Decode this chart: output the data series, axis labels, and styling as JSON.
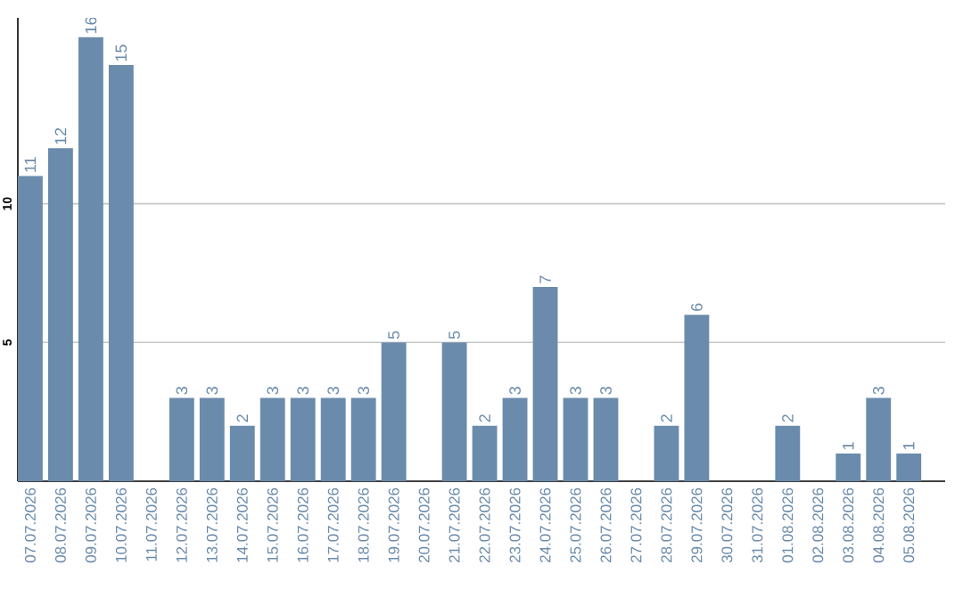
{
  "chart_data": {
    "type": "bar",
    "categories": [
      "07.07.2026",
      "08.07.2026",
      "09.07.2026",
      "10.07.2026",
      "11.07.2026",
      "12.07.2026",
      "13.07.2026",
      "14.07.2026",
      "15.07.2026",
      "16.07.2026",
      "17.07.2026",
      "18.07.2026",
      "19.07.2026",
      "20.07.2026",
      "21.07.2026",
      "22.07.2026",
      "23.07.2026",
      "24.07.2026",
      "25.07.2026",
      "26.07.2026",
      "27.07.2026",
      "28.07.2026",
      "29.07.2026",
      "30.07.2026",
      "31.07.2026",
      "01.08.2026",
      "02.08.2026",
      "03.08.2026",
      "04.08.2026",
      "05.08.2026"
    ],
    "values": [
      11,
      12,
      16,
      15,
      null,
      3,
      3,
      2,
      3,
      3,
      3,
      3,
      5,
      null,
      5,
      2,
      3,
      7,
      3,
      3,
      null,
      2,
      6,
      null,
      null,
      2,
      null,
      1,
      3,
      1
    ],
    "color": "#6a8bab",
    "ylim": [
      0,
      16.7
    ],
    "yticks": [
      5,
      10
    ],
    "grid": "y",
    "data_labels": true
  }
}
